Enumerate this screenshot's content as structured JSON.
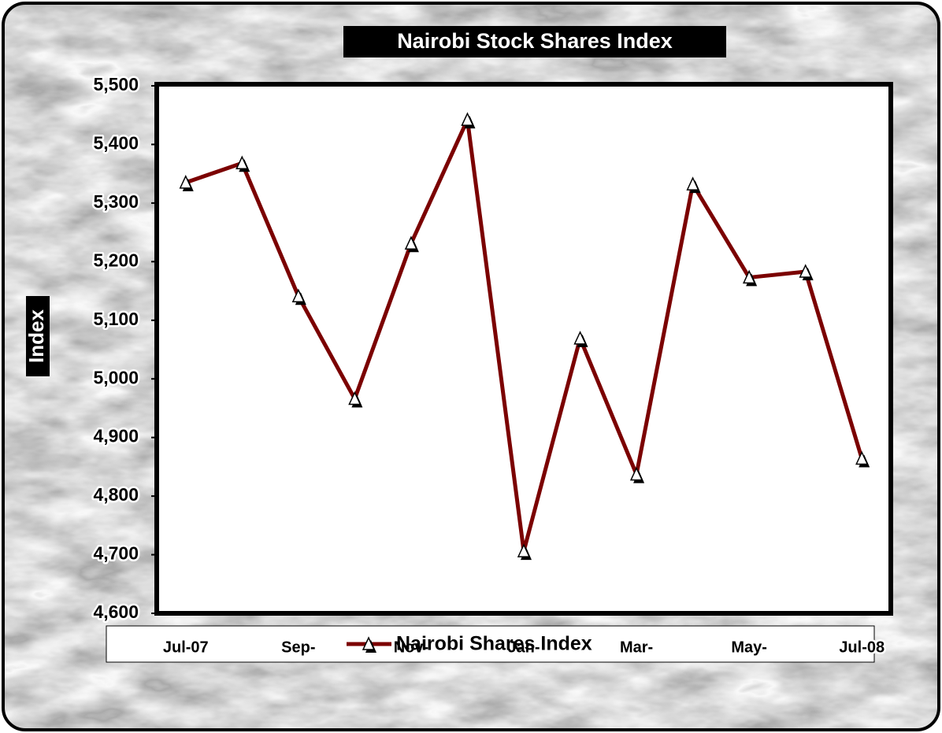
{
  "chart_data": {
    "type": "line",
    "title": "Nairobi Stock Shares Index",
    "y_label": "Index",
    "categories": [
      "Jul-07",
      null,
      "Sep-",
      null,
      "Nov-",
      null,
      "Jan-",
      null,
      "Mar-",
      null,
      "May-",
      null,
      "Jul-08"
    ],
    "series": [
      {
        "name": "Nairobi Shares Index",
        "color": "#7b0000",
        "values": [
          5335,
          5368,
          5141,
          4966,
          5231,
          5442,
          4706,
          5069,
          4837,
          5332,
          5173,
          5183,
          4864
        ]
      }
    ],
    "ylim": [
      4600,
      5500
    ],
    "yticks": [
      {
        "value": 4600,
        "label": "4,600"
      },
      {
        "value": 4700,
        "label": "4,700"
      },
      {
        "value": 4800,
        "label": "4,800"
      },
      {
        "value": 4900,
        "label": "4,900"
      },
      {
        "value": 5000,
        "label": "5,000"
      },
      {
        "value": 5100,
        "label": "5,100"
      },
      {
        "value": 5200,
        "label": "5,200"
      },
      {
        "value": 5300,
        "label": "5,300"
      },
      {
        "value": 5400,
        "label": "5,400"
      },
      {
        "value": 5500,
        "label": "5,500"
      }
    ],
    "legend": "bottom"
  }
}
